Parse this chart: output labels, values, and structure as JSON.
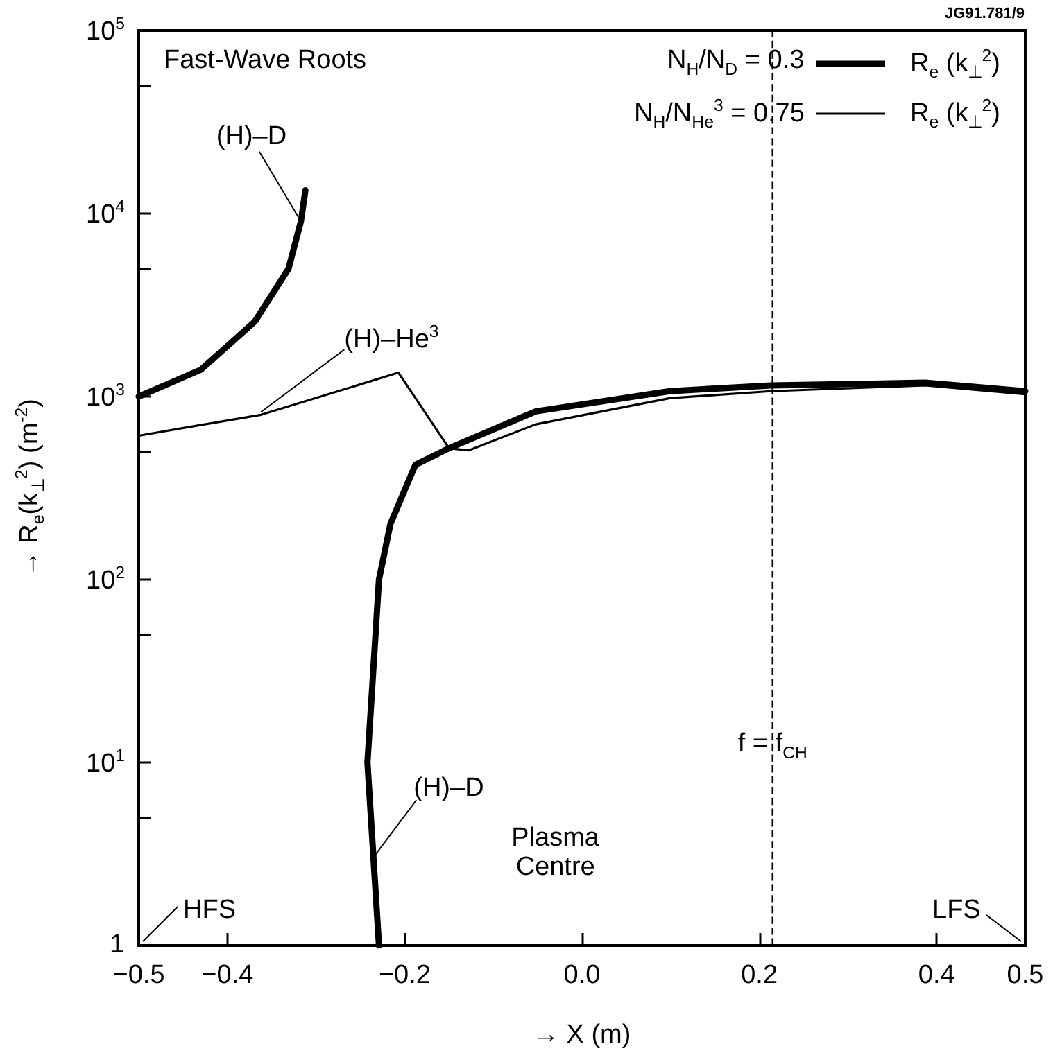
{
  "chart_data": {
    "type": "line",
    "title": "Fast-Wave Roots",
    "xlabel": "→ X (m)",
    "ylabel": "→ R$_{e}$(k$_{⊥}$$^{2}$) (m$^{-2}$)",
    "legend_title": "R$_{e}$ (k$_{⊥}$$^{2}$)",
    "legend": "top right",
    "log": "y",
    "grid": false,
    "marker": "none",
    "line_style": "solid",
    "xlim": [
      -0.5,
      0.5
    ],
    "xticks": [
      {
        "value": -0.5,
        "label": "−0.5"
      },
      {
        "value": -0.4,
        "label": "−0.4"
      },
      {
        "value": -0.2,
        "label": "−0.2"
      },
      {
        "value": 0,
        "label": "0.0"
      },
      {
        "value": 0.2,
        "label": "0.2"
      },
      {
        "value": 0.4,
        "label": "0.4"
      },
      {
        "value": 0.5,
        "label": "0.5"
      }
    ],
    "ylim": [
      1,
      100000
    ],
    "yticks": [
      {
        "value": 1,
        "label": "1"
      },
      {
        "value": 5,
        "label": null
      },
      {
        "value": 10,
        "label": "10$^{1}$"
      },
      {
        "value": 50,
        "label": null
      },
      {
        "value": 100,
        "label": "10$^{2}$"
      },
      {
        "value": 500,
        "label": null
      },
      {
        "value": 1000,
        "label": "10$^{3}$"
      },
      {
        "value": 5000,
        "label": null
      },
      {
        "value": 10000,
        "label": "10$^{4}$"
      },
      {
        "value": 50000,
        "label": null
      },
      {
        "value": 100000,
        "label": "10$^{5}$"
      }
    ],
    "series": [
      {
        "name": "N$_{H}$/N$_{D}$ = 0.3",
        "color": "#000000",
        "x": [
          -0.5,
          -0.43,
          -0.369,
          -0.331,
          -0.317,
          -0.312,
          -0.3,
          -0.229,
          -0.242,
          -0.229,
          -0.216,
          -0.188,
          -0.15,
          -0.052,
          0.099,
          0.213,
          0.387,
          0.5
        ],
        "values": [
          1000,
          1400,
          2570,
          5000,
          9100,
          13400,
          null,
          1,
          10,
          100,
          202,
          423,
          522,
          830,
          1070,
          1150,
          1190,
          1070
        ]
      },
      {
        "name": "N$_{H}$/N$_{He}$$^{3}$ = 0.75",
        "color": "#000000",
        "x": [
          -0.5,
          -0.362,
          -0.207,
          -0.15,
          -0.128,
          -0.052,
          0.099,
          0.213,
          0.387,
          0.5
        ],
        "values": [
          611,
          795,
          1350,
          522,
          508,
          705,
          980,
          1070,
          1150,
          1030
        ]
      }
    ],
    "ref_lines": [
      {
        "axis": "x",
        "value": 0.215,
        "label": "f = f$_{CH}$",
        "line_style": "dashed",
        "color": "#000000"
      }
    ],
    "annotations": [
      {
        "text": "(H)–D",
        "x": -0.317,
        "y": 9100
      },
      {
        "text": "(H)–He$^{3}$",
        "x": -0.362,
        "y": 795
      },
      {
        "text": "(H)–D",
        "x": -0.24,
        "y": 3
      },
      "Plasma Centre",
      "HFS",
      "LFS",
      "JG91.781/9"
    ]
  }
}
